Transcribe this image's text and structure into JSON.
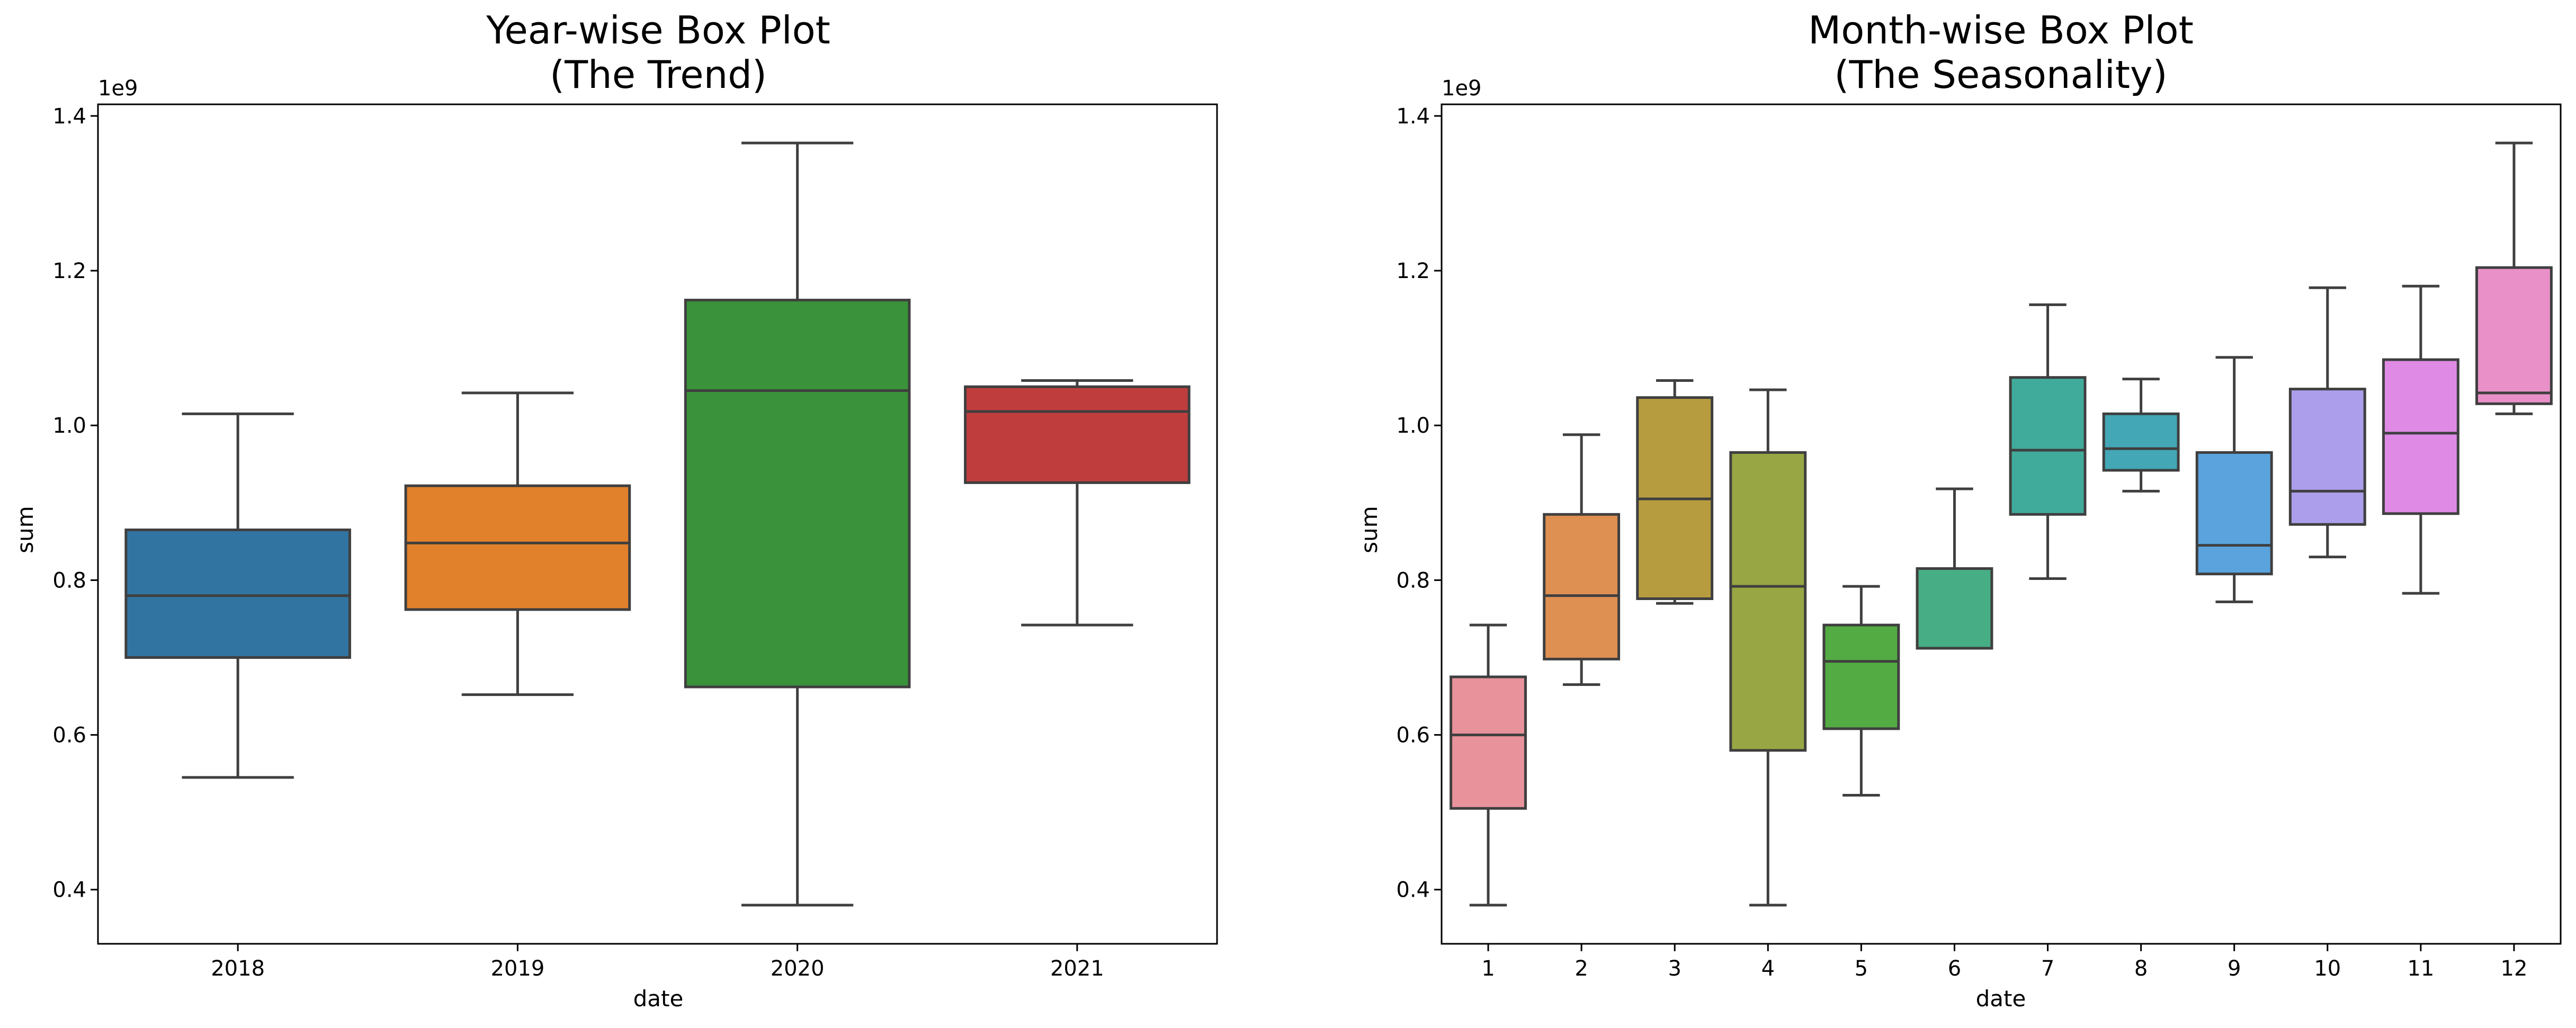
{
  "chart_data": [
    {
      "type": "box",
      "title_lines": [
        "Year-wise Box Plot",
        "(The Trend)"
      ],
      "xlabel": "date",
      "ylabel": "sum",
      "y_offset_label": "1e9",
      "ylim": [
        0.33,
        1.415
      ],
      "yticks": [
        "0.4",
        "0.6",
        "0.8",
        "1.0",
        "1.2",
        "1.4"
      ],
      "grid": false,
      "legend": "none",
      "categories": [
        "2018",
        "2019",
        "2020",
        "2021"
      ],
      "boxes": [
        {
          "category": "2018",
          "whisker_low": 0.545,
          "q1": 0.7,
          "median": 0.78,
          "q3": 0.865,
          "whisker_high": 1.015,
          "color": "#3274a1"
        },
        {
          "category": "2019",
          "whisker_low": 0.652,
          "q1": 0.762,
          "median": 0.848,
          "q3": 0.922,
          "whisker_high": 1.042,
          "color": "#e1812c"
        },
        {
          "category": "2020",
          "whisker_low": 0.38,
          "q1": 0.662,
          "median": 1.045,
          "q3": 1.162,
          "whisker_high": 1.365,
          "color": "#3a923a"
        },
        {
          "category": "2021",
          "whisker_low": 0.742,
          "q1": 0.926,
          "median": 1.018,
          "q3": 1.05,
          "whisker_high": 1.058,
          "color": "#c03d3e"
        }
      ]
    },
    {
      "type": "box",
      "title_lines": [
        "Month-wise Box Plot",
        "(The Seasonality)"
      ],
      "xlabel": "date",
      "ylabel": "sum",
      "y_offset_label": "1e9",
      "ylim": [
        0.33,
        1.415
      ],
      "yticks": [
        "0.4",
        "0.6",
        "0.8",
        "1.0",
        "1.2",
        "1.4"
      ],
      "grid": false,
      "legend": "none",
      "categories": [
        "1",
        "2",
        "3",
        "4",
        "5",
        "6",
        "7",
        "8",
        "9",
        "10",
        "11",
        "12"
      ],
      "boxes": [
        {
          "category": "1",
          "whisker_low": 0.38,
          "q1": 0.505,
          "median": 0.6,
          "q3": 0.675,
          "whisker_high": 0.742,
          "color": "#e8929b"
        },
        {
          "category": "2",
          "whisker_low": 0.665,
          "q1": 0.698,
          "median": 0.78,
          "q3": 0.885,
          "whisker_high": 0.988,
          "color": "#de8f52"
        },
        {
          "category": "3",
          "whisker_low": 0.77,
          "q1": 0.776,
          "median": 0.905,
          "q3": 1.036,
          "whisker_high": 1.058,
          "color": "#b79c3f"
        },
        {
          "category": "4",
          "whisker_low": 0.38,
          "q1": 0.58,
          "median": 0.792,
          "q3": 0.965,
          "whisker_high": 1.046,
          "color": "#98a743"
        },
        {
          "category": "5",
          "whisker_low": 0.522,
          "q1": 0.608,
          "median": 0.695,
          "q3": 0.742,
          "whisker_high": 0.792,
          "color": "#53ab44"
        },
        {
          "category": "6",
          "whisker_low": 0.712,
          "q1": 0.712,
          "median": 0.712,
          "q3": 0.815,
          "whisker_high": 0.918,
          "color": "#47ad84"
        },
        {
          "category": "7",
          "whisker_low": 0.802,
          "q1": 0.885,
          "median": 0.968,
          "q3": 1.062,
          "whisker_high": 1.156,
          "color": "#41ab9b"
        },
        {
          "category": "8",
          "whisker_low": 0.915,
          "q1": 0.942,
          "median": 0.97,
          "q3": 1.015,
          "whisker_high": 1.06,
          "color": "#43a7b6"
        },
        {
          "category": "9",
          "whisker_low": 0.772,
          "q1": 0.808,
          "median": 0.845,
          "q3": 0.965,
          "whisker_high": 1.088,
          "color": "#5aa3dd"
        },
        {
          "category": "10",
          "whisker_low": 0.83,
          "q1": 0.872,
          "median": 0.915,
          "q3": 1.047,
          "whisker_high": 1.178,
          "color": "#ac9eea"
        },
        {
          "category": "11",
          "whisker_low": 0.783,
          "q1": 0.886,
          "median": 0.99,
          "q3": 1.085,
          "whisker_high": 1.18,
          "color": "#df8be6"
        },
        {
          "category": "12",
          "whisker_low": 1.015,
          "q1": 1.028,
          "median": 1.042,
          "q3": 1.204,
          "whisker_high": 1.365,
          "color": "#e990c8"
        }
      ]
    }
  ]
}
